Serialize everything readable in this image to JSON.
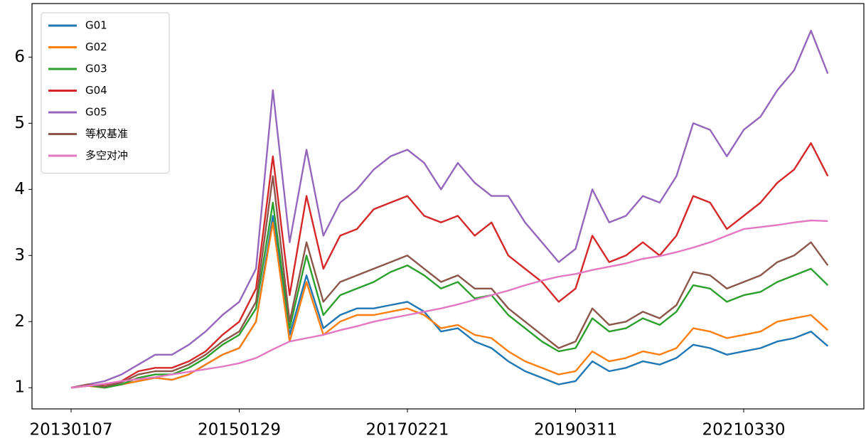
{
  "chart_data": {
    "type": "line",
    "categories": [
      "20130107",
      null,
      null,
      null,
      null,
      null,
      null,
      null,
      null,
      null,
      "20150129",
      null,
      null,
      null,
      null,
      null,
      null,
      null,
      null,
      null,
      "20170221",
      null,
      null,
      null,
      null,
      null,
      null,
      null,
      null,
      null,
      "20190311",
      null,
      null,
      null,
      null,
      null,
      null,
      null,
      null,
      null,
      "20210330",
      null,
      null,
      null,
      null,
      null
    ],
    "ylim": [
      0.68,
      6.81
    ],
    "yticks": [
      1,
      2,
      3,
      4,
      5,
      6
    ],
    "grid": false,
    "legend": "upper left",
    "series": [
      {
        "name": "G01",
        "color": "#1f77b4",
        "values": [
          1.0,
          1.03,
          1.0,
          1.05,
          1.1,
          1.15,
          1.12,
          1.2,
          1.35,
          1.5,
          1.6,
          2.0,
          3.6,
          1.8,
          2.7,
          1.9,
          2.1,
          2.2,
          2.2,
          2.25,
          2.3,
          2.15,
          1.85,
          1.9,
          1.7,
          1.6,
          1.4,
          1.25,
          1.15,
          1.05,
          1.1,
          1.4,
          1.25,
          1.3,
          1.4,
          1.35,
          1.45,
          1.65,
          1.6,
          1.5,
          1.55,
          1.6,
          1.7,
          1.75,
          1.85,
          1.63
        ]
      },
      {
        "name": "G02",
        "color": "#ff7f0e",
        "values": [
          1.0,
          1.03,
          1.0,
          1.05,
          1.1,
          1.15,
          1.12,
          1.2,
          1.35,
          1.5,
          1.6,
          2.0,
          3.5,
          1.7,
          2.6,
          1.8,
          2.0,
          2.1,
          2.1,
          2.15,
          2.2,
          2.1,
          1.9,
          1.95,
          1.8,
          1.75,
          1.55,
          1.4,
          1.3,
          1.2,
          1.25,
          1.55,
          1.4,
          1.45,
          1.55,
          1.5,
          1.6,
          1.9,
          1.85,
          1.75,
          1.8,
          1.85,
          2.0,
          2.05,
          2.1,
          1.87
        ]
      },
      {
        "name": "G03",
        "color": "#2ca02c",
        "values": [
          1.0,
          1.04,
          1.0,
          1.05,
          1.15,
          1.2,
          1.2,
          1.3,
          1.45,
          1.65,
          1.8,
          2.2,
          3.8,
          1.9,
          3.0,
          2.1,
          2.4,
          2.5,
          2.6,
          2.75,
          2.85,
          2.7,
          2.5,
          2.6,
          2.35,
          2.4,
          2.1,
          1.9,
          1.7,
          1.55,
          1.6,
          2.05,
          1.85,
          1.9,
          2.05,
          1.95,
          2.15,
          2.55,
          2.5,
          2.3,
          2.4,
          2.45,
          2.6,
          2.7,
          2.8,
          2.55
        ]
      },
      {
        "name": "G04",
        "color": "#d62728",
        "values": [
          1.0,
          1.03,
          1.05,
          1.1,
          1.25,
          1.3,
          1.3,
          1.4,
          1.55,
          1.8,
          2.0,
          2.5,
          4.5,
          2.4,
          3.9,
          2.8,
          3.3,
          3.4,
          3.7,
          3.8,
          3.9,
          3.6,
          3.5,
          3.6,
          3.3,
          3.5,
          3.0,
          2.8,
          2.6,
          2.3,
          2.5,
          3.3,
          2.9,
          3.0,
          3.2,
          3.0,
          3.3,
          3.9,
          3.8,
          3.4,
          3.6,
          3.8,
          4.1,
          4.3,
          4.7,
          4.2
        ]
      },
      {
        "name": "G05",
        "color": "#9467bd",
        "values": [
          1.0,
          1.05,
          1.1,
          1.2,
          1.35,
          1.5,
          1.5,
          1.65,
          1.85,
          2.1,
          2.3,
          2.8,
          5.5,
          3.2,
          4.6,
          3.3,
          3.8,
          4.0,
          4.3,
          4.5,
          4.6,
          4.4,
          4.0,
          4.4,
          4.1,
          3.9,
          3.9,
          3.5,
          3.2,
          2.9,
          3.1,
          4.0,
          3.5,
          3.6,
          3.9,
          3.8,
          4.2,
          5.0,
          4.9,
          4.5,
          4.9,
          5.1,
          5.5,
          5.8,
          6.4,
          5.75
        ]
      },
      {
        "name": "等权基准",
        "color": "#8c564b",
        "values": [
          1.0,
          1.05,
          1.02,
          1.08,
          1.2,
          1.25,
          1.25,
          1.35,
          1.5,
          1.7,
          1.85,
          2.3,
          4.2,
          2.0,
          3.2,
          2.3,
          2.6,
          2.7,
          2.8,
          2.9,
          3.0,
          2.8,
          2.6,
          2.7,
          2.5,
          2.5,
          2.2,
          2.0,
          1.8,
          1.6,
          1.7,
          2.2,
          1.95,
          2.0,
          2.15,
          2.05,
          2.25,
          2.75,
          2.7,
          2.5,
          2.6,
          2.7,
          2.9,
          3.0,
          3.2,
          2.85
        ]
      },
      {
        "name": "多空对冲",
        "color": "#e377c2",
        "values": [
          1.0,
          1.03,
          1.06,
          1.1,
          1.13,
          1.16,
          1.2,
          1.24,
          1.28,
          1.32,
          1.37,
          1.45,
          1.58,
          1.7,
          1.75,
          1.8,
          1.87,
          1.93,
          2.0,
          2.05,
          2.1,
          2.15,
          2.2,
          2.26,
          2.33,
          2.4,
          2.47,
          2.55,
          2.62,
          2.68,
          2.72,
          2.78,
          2.83,
          2.88,
          2.95,
          2.99,
          3.05,
          3.12,
          3.2,
          3.3,
          3.4,
          3.43,
          3.46,
          3.5,
          3.53,
          3.52
        ]
      }
    ]
  }
}
